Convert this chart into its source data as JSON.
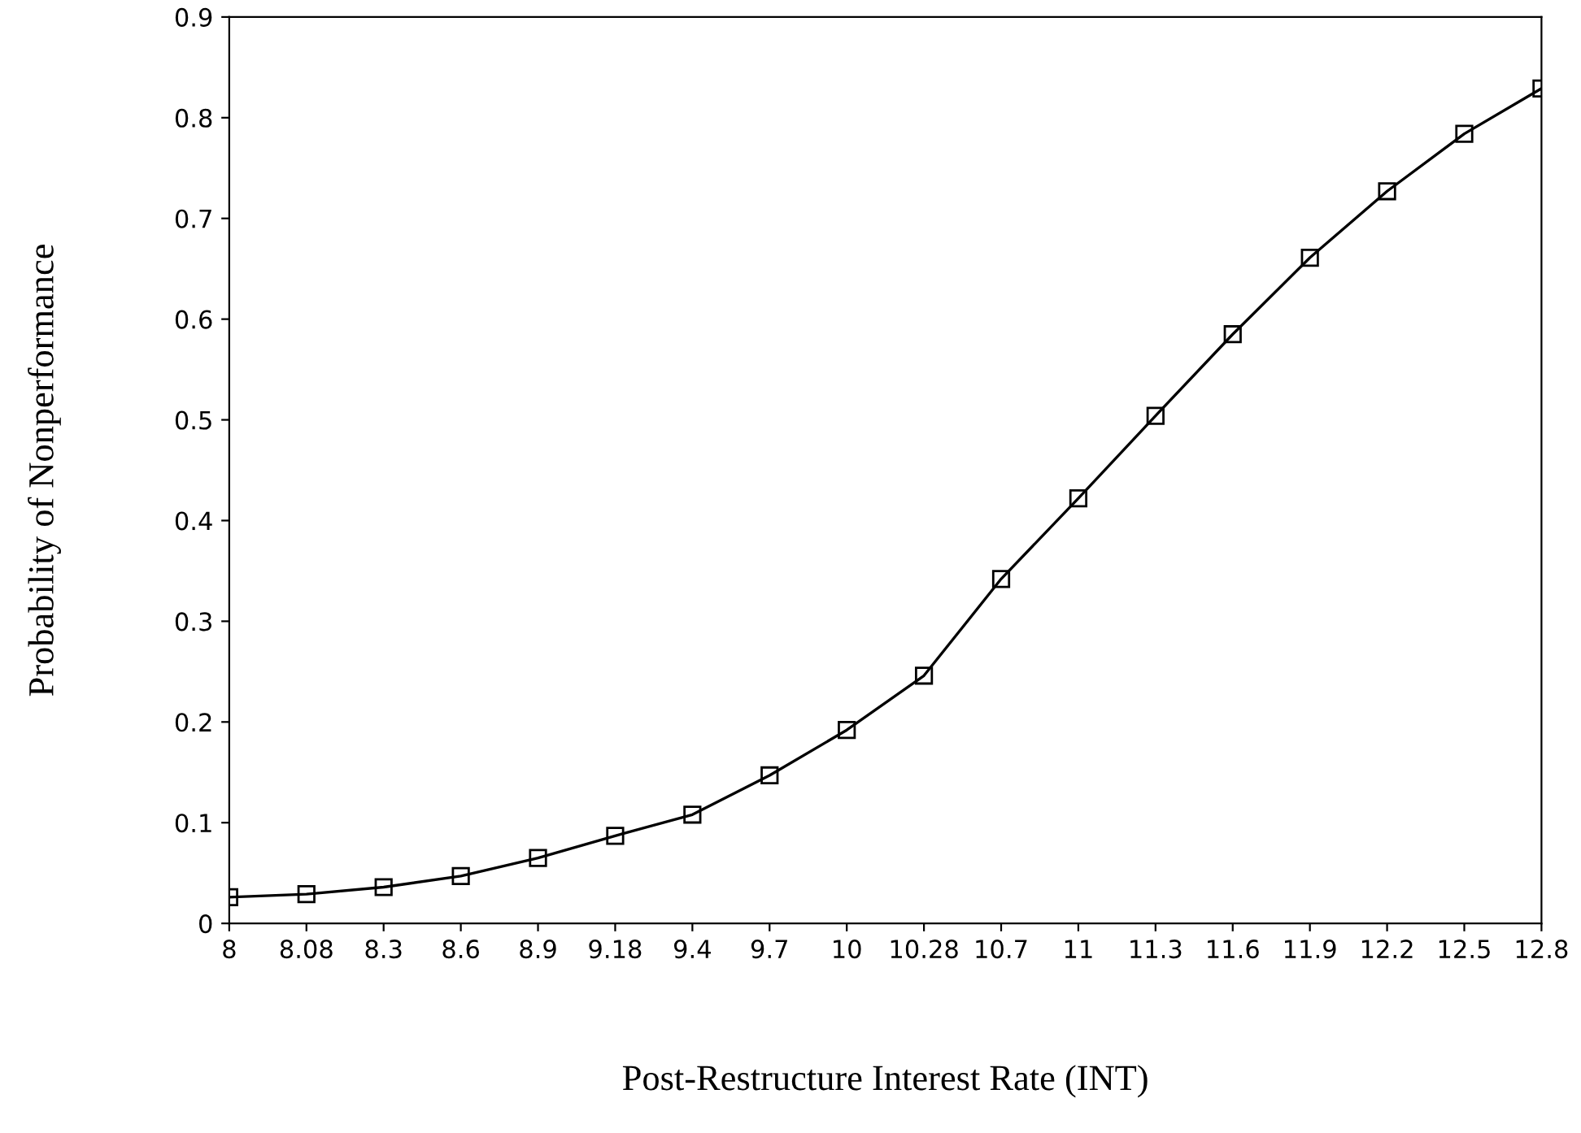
{
  "chart_data": {
    "type": "line",
    "xlabel": "Post-Restructure Interest Rate (INT)",
    "ylabel": "Probability of Nonperformance",
    "categories": [
      "8",
      "8.08",
      "8.3",
      "8.6",
      "8.9",
      "9.18",
      "9.4",
      "9.7",
      "10",
      "10.28",
      "10.7",
      "11",
      "11.3",
      "11.6",
      "11.9",
      "12.2",
      "12.5",
      "12.8"
    ],
    "series": [
      {
        "color": "#000000",
        "values": [
          0.026,
          0.029,
          0.036,
          0.047,
          0.065,
          0.087,
          0.108,
          0.147,
          0.192,
          0.246,
          0.342,
          0.422,
          0.504,
          0.585,
          0.661,
          0.727,
          0.784,
          0.829
        ]
      }
    ],
    "ylim": [
      0,
      0.9
    ],
    "yticks": [
      0,
      0.1,
      0.2,
      0.3,
      0.4,
      0.5,
      0.6,
      0.7,
      0.8,
      0.9
    ],
    "marker": "square",
    "line_style": "solid",
    "grid": false,
    "legend": false
  }
}
